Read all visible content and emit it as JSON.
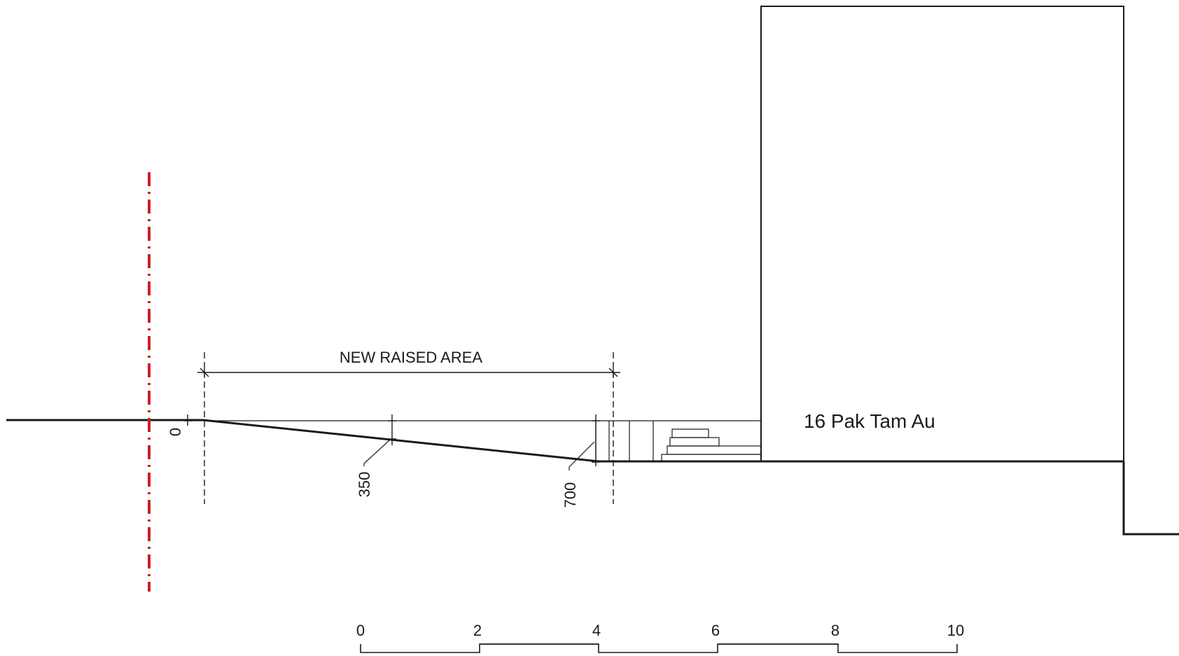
{
  "drawing": {
    "building_label": "16 Pak Tam Au",
    "dimension_label": "NEW RAISED AREA",
    "levels": [
      "0",
      "350",
      "700"
    ]
  },
  "scale_bar": {
    "ticks": [
      "0",
      "2",
      "4",
      "6",
      "8",
      "10"
    ]
  },
  "colors": {
    "line": "#1a1a1a",
    "boundary": "#d8202a",
    "background": "#ffffff"
  }
}
